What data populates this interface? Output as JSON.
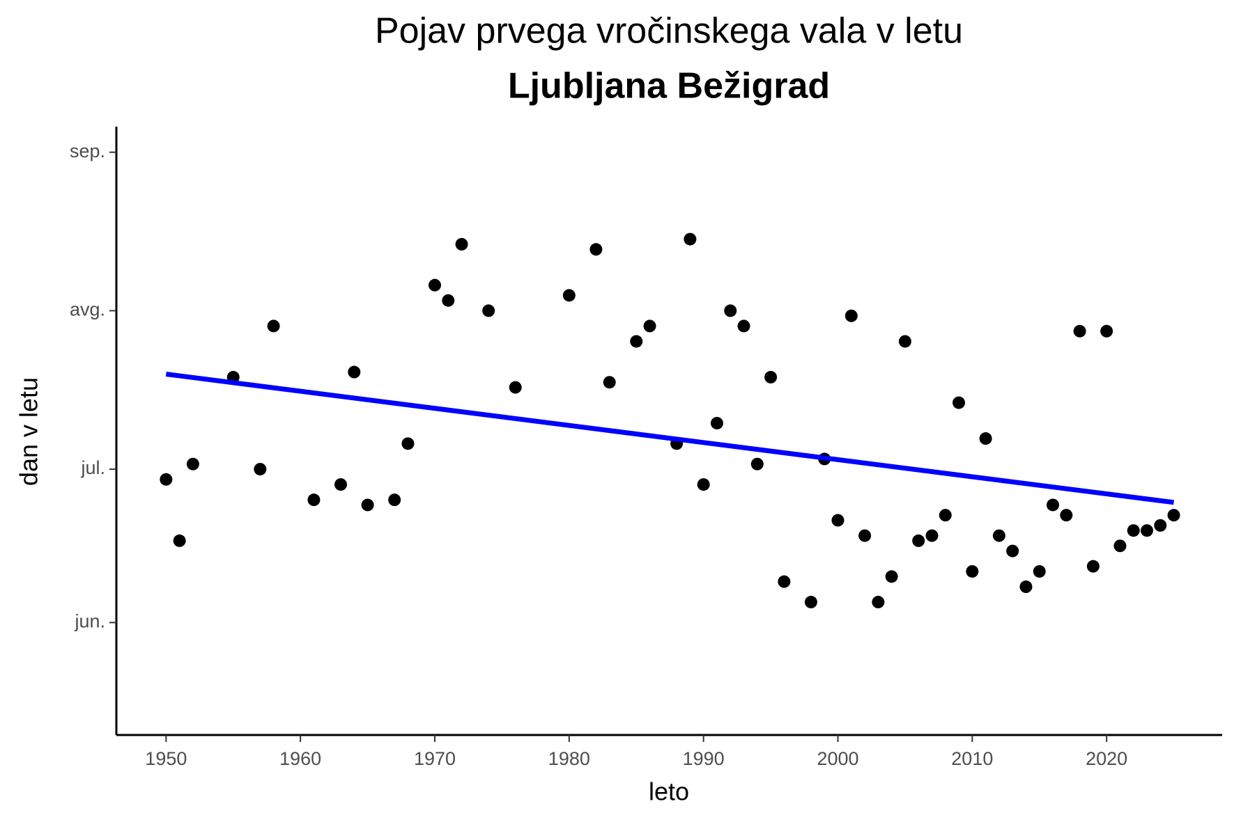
{
  "chart_data": {
    "type": "scatter",
    "title": "Pojav prvega vročinskega vala v letu",
    "subtitle": "Ljubljana Bežigrad",
    "x_label": "leto",
    "y_label": "dan v letu",
    "x": [
      1950,
      1951,
      1952,
      1955,
      1957,
      1958,
      1961,
      1963,
      1964,
      1965,
      1967,
      1968,
      1970,
      1971,
      1972,
      1974,
      1976,
      1980,
      1982,
      1983,
      1985,
      1986,
      1988,
      1989,
      1990,
      1991,
      1992,
      1993,
      1994,
      1995,
      1996,
      1998,
      1999,
      2000,
      2001,
      2002,
      2003,
      2004,
      2005,
      2006,
      2007,
      2008,
      2009,
      2010,
      2011,
      2012,
      2013,
      2014,
      2015,
      2016,
      2017,
      2018,
      2019,
      2020,
      2021,
      2022,
      2023,
      2024,
      2025
    ],
    "values": [
      180,
      168,
      183,
      200,
      182,
      210,
      176,
      179,
      201,
      175,
      176,
      187,
      218,
      215,
      226,
      213,
      198,
      216,
      225,
      199,
      207,
      210,
      187,
      227,
      179,
      191,
      213,
      210,
      183,
      200,
      160,
      156,
      184,
      172,
      212,
      169,
      156,
      161,
      207,
      168,
      169,
      173,
      195,
      162,
      188,
      169,
      166,
      159,
      162,
      175,
      173,
      209,
      163,
      209,
      167,
      170,
      170,
      171,
      173
    ],
    "color": "#000000",
    "trend": {
      "x": [
        1950,
        2025
      ],
      "values": [
        200.6,
        175.5
      ],
      "color": "#0000ff"
    },
    "xlim": [
      1946.3,
      2028.6
    ],
    "ylim": [
      130,
      249
    ],
    "xticks": [
      1950,
      1960,
      1970,
      1980,
      1990,
      2000,
      2010,
      2020
    ],
    "yticks": [
      {
        "value": 152,
        "label": "jun."
      },
      {
        "value": 182,
        "label": "jul."
      },
      {
        "value": 213,
        "label": "avg."
      },
      {
        "value": 244,
        "label": "sep."
      }
    ],
    "grid": false
  }
}
